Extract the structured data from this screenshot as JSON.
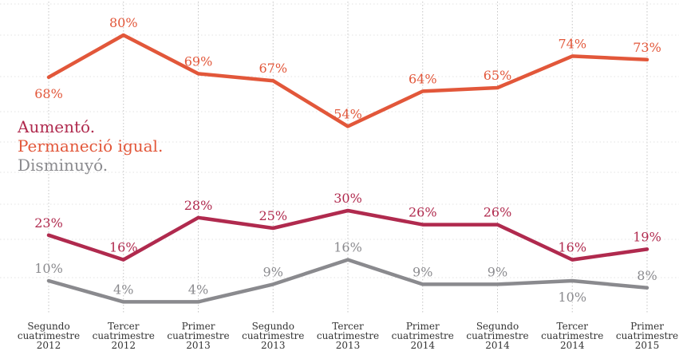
{
  "chart_data": {
    "type": "line",
    "categories": [
      [
        "Segundo",
        "cuatrimestre",
        "2012"
      ],
      [
        "Tercer",
        "cuatrimestre",
        "2012"
      ],
      [
        "Primer",
        "cuatrimestre",
        "2013"
      ],
      [
        "Segundo",
        "cuatrimestre",
        "2013"
      ],
      [
        "Tercer",
        "cuatrimestre",
        "2013"
      ],
      [
        "Primer",
        "cuatrimestre",
        "2014"
      ],
      [
        "Segundo",
        "cuatrimestre",
        "2014"
      ],
      [
        "Tercer",
        "cuatrimestre",
        "2014"
      ],
      [
        "Primer",
        "cuatrimestre",
        "2015"
      ]
    ],
    "series": [
      {
        "name": "Permaneció igual.",
        "values": [
          68,
          80,
          69,
          67,
          54,
          64,
          65,
          74,
          73
        ],
        "labels": [
          "68%",
          "80%",
          "69%",
          "67%",
          "54%",
          "64%",
          "65%",
          "74%",
          "73%"
        ],
        "color": "#e2573a",
        "label_position": [
          "below",
          "above",
          "above",
          "above",
          "above",
          "above",
          "above",
          "above",
          "above"
        ]
      },
      {
        "name": "Aumentó.",
        "values": [
          23,
          16,
          28,
          25,
          30,
          26,
          26,
          16,
          19
        ],
        "labels": [
          "23%",
          "16%",
          "28%",
          "25%",
          "30%",
          "26%",
          "26%",
          "16%",
          "19%"
        ],
        "color": "#b02a4e",
        "label_position": [
          "above",
          "above",
          "above",
          "above",
          "above",
          "above",
          "above",
          "above",
          "above"
        ]
      },
      {
        "name": "Disminuyó.",
        "values": [
          10,
          4,
          4,
          9,
          16,
          9,
          9,
          10,
          8
        ],
        "labels": [
          "10%",
          "4%",
          "4%",
          "9%",
          "16%",
          "9%",
          "9%",
          "10%",
          "8%"
        ],
        "color": "#8a8a8e",
        "label_position": [
          "above",
          "above",
          "above",
          "above",
          "above",
          "above",
          "above",
          "below",
          "above"
        ]
      }
    ],
    "legend": {
      "placement": "left-middle",
      "items": [
        {
          "text": "Aumentó.",
          "color": "#b02a4e"
        },
        {
          "text": "Permaneció igual.",
          "color": "#e2573a"
        },
        {
          "text": "Disminuyó.",
          "color": "#8a8a8e"
        }
      ]
    },
    "ylim": [
      0,
      90
    ],
    "grid": true,
    "title": "",
    "xlabel": "",
    "ylabel": ""
  }
}
